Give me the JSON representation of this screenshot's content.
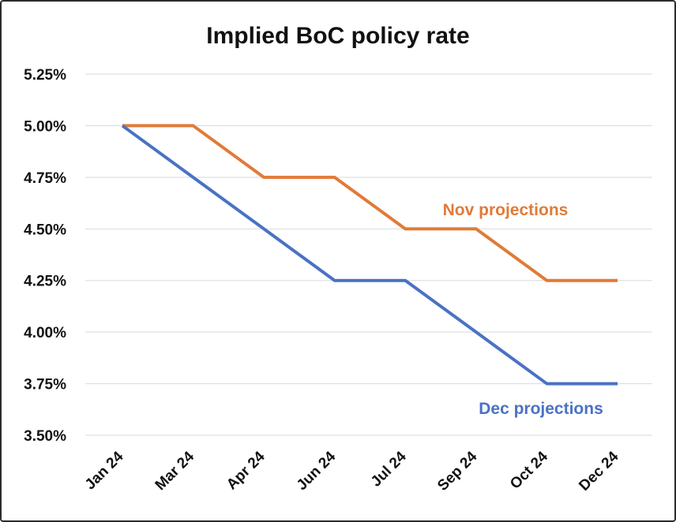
{
  "chart_data": {
    "type": "line",
    "title": "Implied BoC policy rate",
    "categories": [
      "Jan 24",
      "Mar 24",
      "Apr 24",
      "Jun 24",
      "Jul 24",
      "Sep 24",
      "Oct 24",
      "Dec 24"
    ],
    "y_ticks": [
      "5.25%",
      "5.00%",
      "4.75%",
      "4.50%",
      "4.25%",
      "4.00%",
      "3.75%",
      "3.50%"
    ],
    "ylim": [
      3.5,
      5.25
    ],
    "grid": true,
    "series": [
      {
        "name": "Nov projections",
        "color": "#E07B39",
        "values": [
          5.0,
          5.0,
          4.75,
          4.75,
          4.5,
          4.5,
          4.25,
          4.25
        ]
      },
      {
        "name": "Dec projections",
        "color": "#4A72C4",
        "values": [
          5.0,
          4.75,
          4.5,
          4.25,
          4.25,
          4.0,
          3.75,
          3.75
        ]
      }
    ]
  }
}
